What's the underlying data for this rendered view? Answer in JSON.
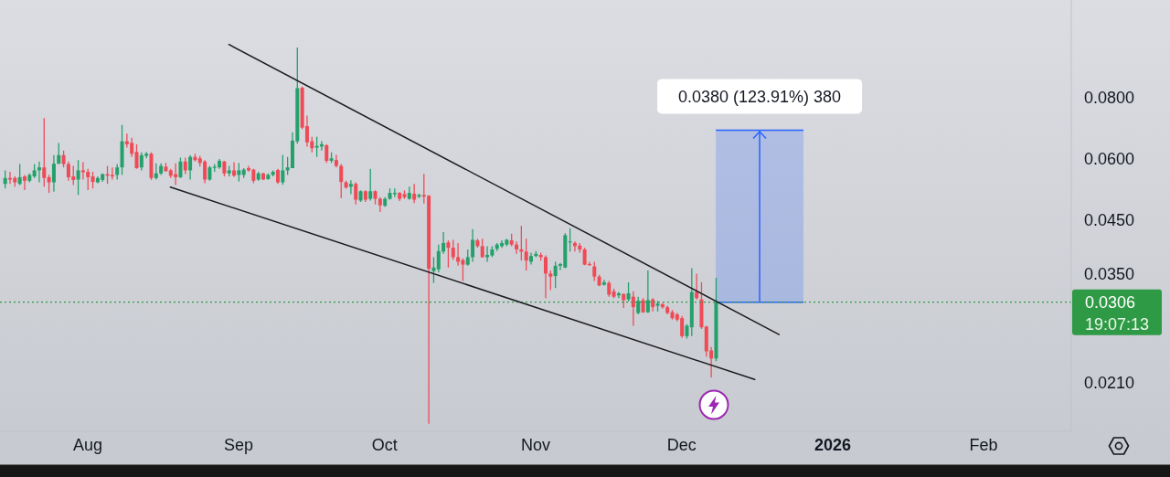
{
  "chart_data": {
    "type": "candlestick",
    "log": true,
    "xlim": [
      "2025-07-14",
      "2026-02-19"
    ],
    "xticks": [
      {
        "value": "2025-08-01",
        "label": "Aug"
      },
      {
        "value": "2025-09-01",
        "label": "Sep"
      },
      {
        "value": "2025-10-01",
        "label": "Oct"
      },
      {
        "value": "2025-11-01",
        "label": "Nov"
      },
      {
        "value": "2025-12-01",
        "label": "Dec"
      },
      {
        "value": "2026-01-01",
        "label": "2026"
      },
      {
        "value": "2026-02-01",
        "label": "Feb"
      }
    ],
    "ylim": [
      0.0167,
      0.1263
    ],
    "yticks": [
      {
        "value": 0.021,
        "label": "0.0210"
      },
      {
        "value": 0.035,
        "label": "0.0350"
      },
      {
        "value": 0.045,
        "label": "0.0450"
      },
      {
        "value": 0.06,
        "label": "0.0600"
      },
      {
        "value": 0.08,
        "label": "0.0800"
      }
    ],
    "x": [
      "2025-07-15",
      "2025-07-16",
      "2025-07-17",
      "2025-07-18",
      "2025-07-19",
      "2025-07-20",
      "2025-07-21",
      "2025-07-22",
      "2025-07-23",
      "2025-07-24",
      "2025-07-25",
      "2025-07-26",
      "2025-07-27",
      "2025-07-28",
      "2025-07-29",
      "2025-07-30",
      "2025-07-31",
      "2025-08-01",
      "2025-08-02",
      "2025-08-03",
      "2025-08-04",
      "2025-08-05",
      "2025-08-06",
      "2025-08-07",
      "2025-08-08",
      "2025-08-09",
      "2025-08-10",
      "2025-08-11",
      "2025-08-12",
      "2025-08-13",
      "2025-08-14",
      "2025-08-15",
      "2025-08-16",
      "2025-08-17",
      "2025-08-18",
      "2025-08-19",
      "2025-08-20",
      "2025-08-21",
      "2025-08-22",
      "2025-08-23",
      "2025-08-24",
      "2025-08-25",
      "2025-08-26",
      "2025-08-27",
      "2025-08-28",
      "2025-08-29",
      "2025-08-30",
      "2025-08-31",
      "2025-09-01",
      "2025-09-02",
      "2025-09-03",
      "2025-09-04",
      "2025-09-05",
      "2025-09-06",
      "2025-09-07",
      "2025-09-08",
      "2025-09-09",
      "2025-09-10",
      "2025-09-11",
      "2025-09-12",
      "2025-09-13",
      "2025-09-14",
      "2025-09-15",
      "2025-09-16",
      "2025-09-17",
      "2025-09-18",
      "2025-09-19",
      "2025-09-20",
      "2025-09-21",
      "2025-09-22",
      "2025-09-23",
      "2025-09-24",
      "2025-09-25",
      "2025-09-26",
      "2025-09-27",
      "2025-09-28",
      "2025-09-29",
      "2025-09-30",
      "2025-10-01",
      "2025-10-02",
      "2025-10-03",
      "2025-10-04",
      "2025-10-05",
      "2025-10-06",
      "2025-10-07",
      "2025-10-08",
      "2025-10-09",
      "2025-10-10",
      "2025-10-11",
      "2025-10-12",
      "2025-10-13",
      "2025-10-14",
      "2025-10-15",
      "2025-10-16",
      "2025-10-17",
      "2025-10-18",
      "2025-10-19",
      "2025-10-20",
      "2025-10-21",
      "2025-10-22",
      "2025-10-23",
      "2025-10-24",
      "2025-10-25",
      "2025-10-26",
      "2025-10-27",
      "2025-10-28",
      "2025-10-29",
      "2025-10-30",
      "2025-10-31",
      "2025-11-01",
      "2025-11-02",
      "2025-11-03",
      "2025-11-04",
      "2025-11-05",
      "2025-11-06",
      "2025-11-07",
      "2025-11-08",
      "2025-11-09",
      "2025-11-10",
      "2025-11-11",
      "2025-11-12",
      "2025-11-13",
      "2025-11-14",
      "2025-11-15",
      "2025-11-16",
      "2025-11-17",
      "2025-11-18",
      "2025-11-19",
      "2025-11-20",
      "2025-11-21",
      "2025-11-22",
      "2025-11-23",
      "2025-11-24",
      "2025-11-25",
      "2025-11-26",
      "2025-11-27",
      "2025-11-28",
      "2025-11-29",
      "2025-11-30",
      "2025-12-01",
      "2025-12-02",
      "2025-12-03",
      "2025-12-04",
      "2025-12-05",
      "2025-12-06",
      "2025-12-07",
      "2025-12-08"
    ],
    "ohlc": [
      [
        0.0533,
        0.0568,
        0.0522,
        0.0548
      ],
      [
        0.0548,
        0.0564,
        0.0533,
        0.0544
      ],
      [
        0.0548,
        0.0552,
        0.0526,
        0.0537
      ],
      [
        0.0533,
        0.0585,
        0.053,
        0.055
      ],
      [
        0.0552,
        0.0556,
        0.0518,
        0.0541
      ],
      [
        0.0541,
        0.056,
        0.0537,
        0.0556
      ],
      [
        0.0552,
        0.0585,
        0.0548,
        0.0568
      ],
      [
        0.0568,
        0.0592,
        0.0537,
        0.0576
      ],
      [
        0.0576,
        0.0726,
        0.0526,
        0.0548
      ],
      [
        0.055,
        0.0556,
        0.0511,
        0.0537
      ],
      [
        0.0537,
        0.061,
        0.0514,
        0.0586
      ],
      [
        0.0586,
        0.0646,
        0.0585,
        0.061
      ],
      [
        0.061,
        0.0623,
        0.0576,
        0.0585
      ],
      [
        0.0585,
        0.0592,
        0.0541,
        0.055
      ],
      [
        0.0552,
        0.058,
        0.053,
        0.0543
      ],
      [
        0.0544,
        0.0596,
        0.0506,
        0.0568
      ],
      [
        0.0568,
        0.059,
        0.0544,
        0.0563
      ],
      [
        0.0564,
        0.0572,
        0.0518,
        0.055
      ],
      [
        0.0552,
        0.0564,
        0.0522,
        0.0538
      ],
      [
        0.0537,
        0.0552,
        0.0535,
        0.0548
      ],
      [
        0.0543,
        0.056,
        0.0538,
        0.0558
      ],
      [
        0.0558,
        0.058,
        0.0533,
        0.0554
      ],
      [
        0.0556,
        0.0576,
        0.0544,
        0.0552
      ],
      [
        0.0556,
        0.0585,
        0.0544,
        0.0576
      ],
      [
        0.0576,
        0.0703,
        0.0556,
        0.0651
      ],
      [
        0.0651,
        0.0675,
        0.0632,
        0.0642
      ],
      [
        0.0646,
        0.0662,
        0.0605,
        0.0614
      ],
      [
        0.0619,
        0.0642,
        0.0572,
        0.0574
      ],
      [
        0.0576,
        0.0618,
        0.0568,
        0.061
      ],
      [
        0.0608,
        0.0619,
        0.0601,
        0.0614
      ],
      [
        0.0614,
        0.0618,
        0.0543,
        0.0548
      ],
      [
        0.0548,
        0.0587,
        0.0544,
        0.056
      ],
      [
        0.056,
        0.0587,
        0.0556,
        0.058
      ],
      [
        0.0578,
        0.0588,
        0.0564,
        0.0566
      ],
      [
        0.0568,
        0.0572,
        0.0548,
        0.0554
      ],
      [
        0.0558,
        0.0587,
        0.053,
        0.055
      ],
      [
        0.055,
        0.0603,
        0.0548,
        0.0592
      ],
      [
        0.0592,
        0.0603,
        0.0558,
        0.0568
      ],
      [
        0.0568,
        0.061,
        0.0544,
        0.0605
      ],
      [
        0.0605,
        0.0614,
        0.0592,
        0.0596
      ],
      [
        0.0601,
        0.0608,
        0.0578,
        0.0588
      ],
      [
        0.0592,
        0.0596,
        0.0535,
        0.0544
      ],
      [
        0.0544,
        0.058,
        0.0541,
        0.0576
      ],
      [
        0.0575,
        0.0585,
        0.0564,
        0.0578
      ],
      [
        0.0576,
        0.0599,
        0.0572,
        0.0594
      ],
      [
        0.0592,
        0.0594,
        0.0552,
        0.056
      ],
      [
        0.056,
        0.058,
        0.0552,
        0.0568
      ],
      [
        0.0568,
        0.059,
        0.0551,
        0.0554
      ],
      [
        0.0556,
        0.0588,
        0.0539,
        0.0568
      ],
      [
        0.0556,
        0.0574,
        0.0548,
        0.057
      ],
      [
        0.0574,
        0.058,
        0.0564,
        0.0568
      ],
      [
        0.057,
        0.0572,
        0.0535,
        0.0541
      ],
      [
        0.0544,
        0.0564,
        0.0541,
        0.056
      ],
      [
        0.056,
        0.0562,
        0.0543,
        0.0544
      ],
      [
        0.0545,
        0.056,
        0.0544,
        0.0556
      ],
      [
        0.0556,
        0.0568,
        0.0552,
        0.0564
      ],
      [
        0.0569,
        0.0572,
        0.0533,
        0.0537
      ],
      [
        0.0537,
        0.0611,
        0.0531,
        0.0568
      ],
      [
        0.0568,
        0.0605,
        0.0556,
        0.0576
      ],
      [
        0.0574,
        0.0679,
        0.0574,
        0.0653
      ],
      [
        0.0651,
        0.1011,
        0.0644,
        0.0835
      ],
      [
        0.0837,
        0.0841,
        0.0689,
        0.0694
      ],
      [
        0.0699,
        0.0734,
        0.0635,
        0.0648
      ],
      [
        0.0651,
        0.0665,
        0.0618,
        0.063
      ],
      [
        0.0632,
        0.0665,
        0.0605,
        0.0637
      ],
      [
        0.0635,
        0.0651,
        0.0623,
        0.0642
      ],
      [
        0.0639,
        0.0642,
        0.0588,
        0.0594
      ],
      [
        0.0594,
        0.0618,
        0.0588,
        0.0601
      ],
      [
        0.0596,
        0.0611,
        0.0576,
        0.058
      ],
      [
        0.058,
        0.0585,
        0.0499,
        0.0538
      ],
      [
        0.0537,
        0.0541,
        0.0521,
        0.0524
      ],
      [
        0.0526,
        0.0542,
        0.0508,
        0.0533
      ],
      [
        0.0533,
        0.0537,
        0.0484,
        0.0495
      ],
      [
        0.0493,
        0.0517,
        0.049,
        0.0515
      ],
      [
        0.0515,
        0.0517,
        0.049,
        0.0495
      ],
      [
        0.0497,
        0.0572,
        0.0493,
        0.0515
      ],
      [
        0.0515,
        0.0517,
        0.0484,
        0.0497
      ],
      [
        0.0497,
        0.0501,
        0.0467,
        0.0482
      ],
      [
        0.0481,
        0.0501,
        0.0479,
        0.0497
      ],
      [
        0.0497,
        0.0522,
        0.0495,
        0.0511
      ],
      [
        0.0508,
        0.0522,
        0.0501,
        0.0511
      ],
      [
        0.0511,
        0.0513,
        0.0492,
        0.0497
      ],
      [
        0.0508,
        0.0517,
        0.0497,
        0.0501
      ],
      [
        0.0497,
        0.0526,
        0.0495,
        0.0511
      ],
      [
        0.0509,
        0.0533,
        0.0487,
        0.0495
      ],
      [
        0.0502,
        0.0509,
        0.0499,
        0.0506
      ],
      [
        0.0506,
        0.0559,
        0.0486,
        0.0502
      ],
      [
        0.0504,
        0.0506,
        0.0173,
        0.0358
      ],
      [
        0.0354,
        0.0378,
        0.0335,
        0.036
      ],
      [
        0.0357,
        0.0401,
        0.0352,
        0.0389
      ],
      [
        0.0388,
        0.0425,
        0.0384,
        0.0404
      ],
      [
        0.0405,
        0.0409,
        0.036,
        0.0395
      ],
      [
        0.0395,
        0.041,
        0.0373,
        0.0378
      ],
      [
        0.0378,
        0.0404,
        0.0363,
        0.037
      ],
      [
        0.0373,
        0.0376,
        0.0338,
        0.0365
      ],
      [
        0.0365,
        0.0392,
        0.0363,
        0.0378
      ],
      [
        0.0378,
        0.0431,
        0.037,
        0.041
      ],
      [
        0.0409,
        0.0412,
        0.0395,
        0.0398
      ],
      [
        0.0398,
        0.0412,
        0.0377,
        0.0378
      ],
      [
        0.0378,
        0.0398,
        0.037,
        0.0382
      ],
      [
        0.0381,
        0.0398,
        0.0378,
        0.0392
      ],
      [
        0.0393,
        0.0404,
        0.0389,
        0.0401
      ],
      [
        0.0398,
        0.0409,
        0.0395,
        0.0404
      ],
      [
        0.0401,
        0.0412,
        0.0398,
        0.041
      ],
      [
        0.0409,
        0.0422,
        0.0398,
        0.0401
      ],
      [
        0.0401,
        0.0407,
        0.0384,
        0.0392
      ],
      [
        0.0392,
        0.0438,
        0.0372,
        0.0388
      ],
      [
        0.0388,
        0.0412,
        0.0355,
        0.0372
      ],
      [
        0.037,
        0.0386,
        0.0365,
        0.038
      ],
      [
        0.038,
        0.0389,
        0.0378,
        0.0384
      ],
      [
        0.0382,
        0.0386,
        0.0372,
        0.0378
      ],
      [
        0.0378,
        0.0381,
        0.0312,
        0.035
      ],
      [
        0.035,
        0.0355,
        0.0324,
        0.0345
      ],
      [
        0.0346,
        0.037,
        0.0327,
        0.0363
      ],
      [
        0.0363,
        0.0368,
        0.0356,
        0.0366
      ],
      [
        0.036,
        0.0423,
        0.0359,
        0.0419
      ],
      [
        0.0405,
        0.0433,
        0.0388,
        0.0407
      ],
      [
        0.0404,
        0.0407,
        0.0388,
        0.0398
      ],
      [
        0.0399,
        0.0404,
        0.0386,
        0.0392
      ],
      [
        0.0392,
        0.0395,
        0.0364,
        0.0365
      ],
      [
        0.0366,
        0.037,
        0.0363,
        0.0364
      ],
      [
        0.0362,
        0.037,
        0.0338,
        0.0345
      ],
      [
        0.0345,
        0.0348,
        0.033,
        0.0331
      ],
      [
        0.0332,
        0.034,
        0.0331,
        0.0336
      ],
      [
        0.0335,
        0.0338,
        0.0314,
        0.0317
      ],
      [
        0.0322,
        0.0326,
        0.0312,
        0.0314
      ],
      [
        0.0316,
        0.0321,
        0.0312,
        0.0319
      ],
      [
        0.0318,
        0.0319,
        0.0298,
        0.0309
      ],
      [
        0.031,
        0.0336,
        0.0307,
        0.0319
      ],
      [
        0.0314,
        0.0322,
        0.0274,
        0.0299
      ],
      [
        0.0291,
        0.0314,
        0.0289,
        0.0308
      ],
      [
        0.0309,
        0.0312,
        0.0291,
        0.0292
      ],
      [
        0.0292,
        0.0355,
        0.0291,
        0.0309
      ],
      [
        0.031,
        0.0312,
        0.0293,
        0.0299
      ],
      [
        0.0301,
        0.0308,
        0.0293,
        0.0304
      ],
      [
        0.0303,
        0.0305,
        0.0297,
        0.0299
      ],
      [
        0.0299,
        0.0301,
        0.0289,
        0.0291
      ],
      [
        0.0292,
        0.0295,
        0.0282,
        0.0284
      ],
      [
        0.0289,
        0.0291,
        0.028,
        0.0282
      ],
      [
        0.0284,
        0.0287,
        0.0259,
        0.0261
      ],
      [
        0.0261,
        0.0276,
        0.0258,
        0.0274
      ],
      [
        0.0272,
        0.0359,
        0.0261,
        0.0321
      ],
      [
        0.0321,
        0.035,
        0.031,
        0.0312
      ],
      [
        0.031,
        0.0336,
        0.027,
        0.0272
      ],
      [
        0.0273,
        0.0274,
        0.0237,
        0.0243
      ],
      [
        0.0244,
        0.0248,
        0.0215,
        0.0235
      ],
      [
        0.0235,
        0.0343,
        0.0232,
        0.0306
      ]
    ],
    "colors": [
      "#24a06b",
      "#ef4b57",
      "#ef4b57",
      "#24a06b",
      "#ef4b57",
      "#24a06b",
      "#24a06b",
      "#24a06b",
      "#ef4b57",
      "#ef4b57",
      "#24a06b",
      "#24a06b",
      "#ef4b57",
      "#ef4b57",
      "#ef4b57",
      "#24a06b",
      "#ef4b57",
      "#ef4b57",
      "#ef4b57",
      "#24a06b",
      "#24a06b",
      "#ef4b57",
      "#ef4b57",
      "#24a06b",
      "#24a06b",
      "#ef4b57",
      "#ef4b57",
      "#ef4b57",
      "#24a06b",
      "#24a06b",
      "#ef4b57",
      "#24a06b",
      "#24a06b",
      "#ef4b57",
      "#ef4b57",
      "#ef4b57",
      "#24a06b",
      "#ef4b57",
      "#24a06b",
      "#ef4b57",
      "#ef4b57",
      "#ef4b57",
      "#24a06b",
      "#24a06b",
      "#24a06b",
      "#ef4b57",
      "#24a06b",
      "#ef4b57",
      "#24a06b",
      "#24a06b",
      "#ef4b57",
      "#ef4b57",
      "#24a06b",
      "#ef4b57",
      "#24a06b",
      "#24a06b",
      "#ef4b57",
      "#24a06b",
      "#24a06b",
      "#24a06b",
      "#24a06b",
      "#ef4b57",
      "#ef4b57",
      "#ef4b57",
      "#24a06b",
      "#24a06b",
      "#ef4b57",
      "#24a06b",
      "#ef4b57",
      "#ef4b57",
      "#ef4b57",
      "#24a06b",
      "#ef4b57",
      "#24a06b",
      "#ef4b57",
      "#24a06b",
      "#ef4b57",
      "#ef4b57",
      "#24a06b",
      "#24a06b",
      "#24a06b",
      "#ef4b57",
      "#ef4b57",
      "#24a06b",
      "#ef4b57",
      "#24a06b",
      "#ef4b57",
      "#ef4b57",
      "#24a06b",
      "#24a06b",
      "#24a06b",
      "#ef4b57",
      "#ef4b57",
      "#ef4b57",
      "#ef4b57",
      "#24a06b",
      "#24a06b",
      "#ef4b57",
      "#ef4b57",
      "#24a06b",
      "#24a06b",
      "#24a06b",
      "#24a06b",
      "#24a06b",
      "#ef4b57",
      "#ef4b57",
      "#ef4b57",
      "#ef4b57",
      "#24a06b",
      "#24a06b",
      "#ef4b57",
      "#ef4b57",
      "#ef4b57",
      "#24a06b",
      "#24a06b",
      "#24a06b",
      "#24a06b",
      "#ef4b57",
      "#ef4b57",
      "#ef4b57",
      "#ef4b57",
      "#ef4b57",
      "#ef4b57",
      "#24a06b",
      "#ef4b57",
      "#ef4b57",
      "#24a06b",
      "#ef4b57",
      "#24a06b",
      "#ef4b57",
      "#24a06b",
      "#ef4b57",
      "#24a06b",
      "#ef4b57",
      "#24a06b",
      "#ef4b57",
      "#ef4b57",
      "#ef4b57",
      "#ef4b57",
      "#ef4b57",
      "#24a06b",
      "#24a06b",
      "#ef4b57",
      "#ef4b57",
      "#ef4b57",
      "#ef4b57",
      "#24a06b"
    ],
    "series": [
      {
        "type": "line",
        "x": [
          "2025-08-30",
          "2025-12-21"
        ],
        "values": [
          0.1025,
          0.0263
        ],
        "color": "#1c1c1f"
      },
      {
        "type": "line",
        "x": [
          "2025-08-18",
          "2025-12-16"
        ],
        "values": [
          0.0525,
          0.0213
        ],
        "color": "#1c1c1f"
      }
    ],
    "ref_lines": [
      {
        "axis": "y",
        "value": 0.0306,
        "label": "0.0306",
        "color": "#2f9a45",
        "line_style": "dotted"
      }
    ],
    "bands": [
      {
        "axis": "y",
        "from": 0.0306,
        "to": 0.0686,
        "label": "0.0380 (123.91%) 380",
        "color": "#2962ff"
      }
    ],
    "annotations": [
      "19:07:13"
    ]
  }
}
